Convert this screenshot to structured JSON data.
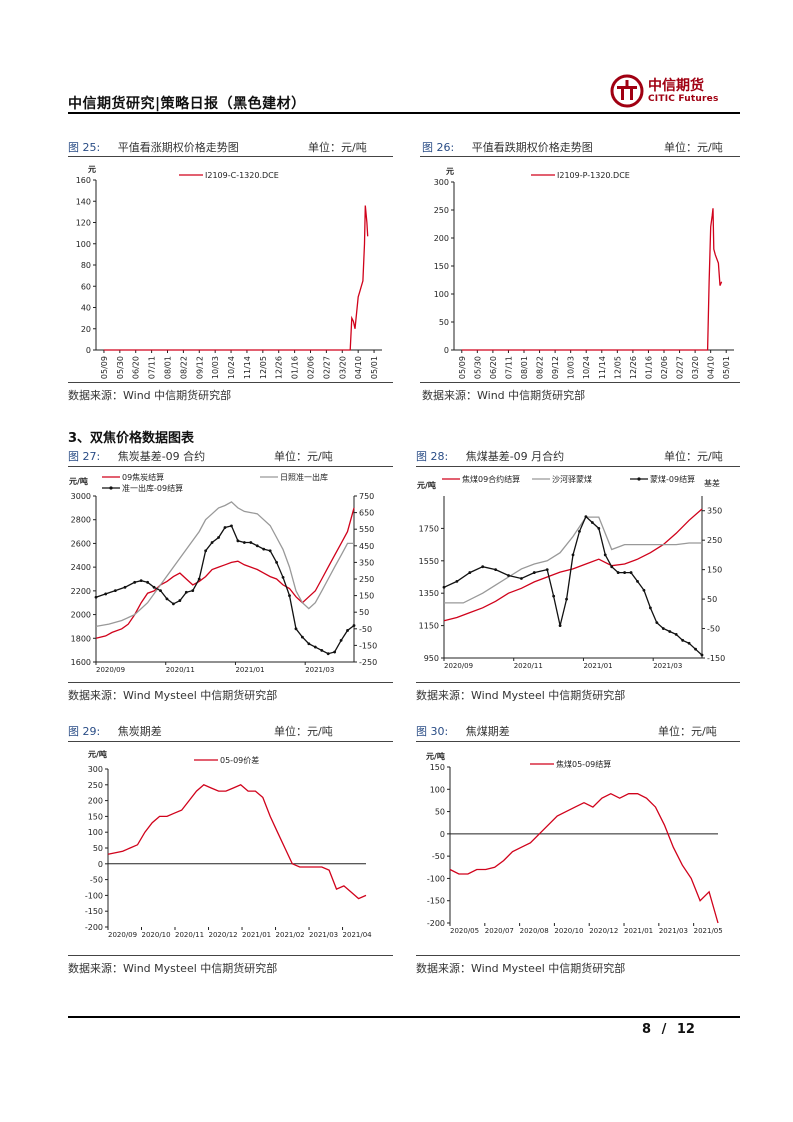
{
  "header": {
    "title": "中信期货研究|策略日报（黑色建材）",
    "logo_cn": "中信期货",
    "logo_en": "CITIC Futures",
    "brand_color": "#a00012"
  },
  "section_title": "3、双焦价格数据图表",
  "figures": [
    {
      "label": "图 25:",
      "title": "平值看涨期权价格走势图",
      "unit": "单位：元/吨",
      "source": "数据来源：Wind  中信期货研究部"
    },
    {
      "label": "图 26:",
      "title": "平值看跌期权价格走势图",
      "unit": "单位：元/吨",
      "source": "数据来源：Wind  中信期货研究部"
    },
    {
      "label": "图 27:",
      "title": "焦炭基差-09 合约",
      "unit": "单位：元/吨",
      "source": "数据来源：Wind Mysteel 中信期货研究部"
    },
    {
      "label": "图 28:",
      "title": "焦煤基差-09 月合约",
      "unit": "单位：元/吨",
      "source": "数据来源：Wind Mysteel 中信期货研究部"
    },
    {
      "label": "图 29:",
      "title": "焦炭期差",
      "unit": "单位：元/吨",
      "source": "数据来源：Wind Mysteel 中信期货研究部"
    },
    {
      "label": "图 30:",
      "title": "焦煤期差",
      "unit": "单位：元/吨",
      "source": "数据来源：Wind Mysteel 中信期货研究部"
    }
  ],
  "footer": {
    "page": "8",
    "total": "12",
    "sep": "/"
  },
  "chart_data": [
    {
      "type": "line",
      "ylabel": "元",
      "ylim": [
        0,
        160
      ],
      "yticks": [
        0,
        20,
        40,
        60,
        80,
        100,
        120,
        140,
        160
      ],
      "categories": [
        "05/09",
        "05/30",
        "06/20",
        "07/11",
        "08/01",
        "08/22",
        "09/12",
        "10/03",
        "10/24",
        "11/14",
        "12/05",
        "12/26",
        "01/16",
        "02/06",
        "02/27",
        "03/20",
        "04/10",
        "05/01"
      ],
      "series": [
        {
          "name": "I2109-C-1320.DCE",
          "color": "#d0021b",
          "x": [
            0,
            15.5,
            15.6,
            15.7,
            15.8,
            15.9,
            16.0,
            16.1,
            16.2,
            16.3,
            16.4,
            16.45,
            16.55,
            16.6
          ],
          "values": [
            0,
            0,
            30,
            27,
            20,
            35,
            50,
            55,
            60,
            65,
            100,
            136,
            120,
            107
          ]
        }
      ]
    },
    {
      "type": "line",
      "ylabel": "元",
      "ylim": [
        0,
        300
      ],
      "yticks": [
        0,
        50,
        100,
        150,
        200,
        250,
        300
      ],
      "categories": [
        "05/09",
        "05/30",
        "06/20",
        "07/11",
        "08/01",
        "08/22",
        "09/12",
        "10/03",
        "10/24",
        "11/14",
        "12/05",
        "12/26",
        "01/16",
        "02/06",
        "02/27",
        "03/20",
        "04/10",
        "05/01"
      ],
      "series": [
        {
          "name": "I2109-P-1320.DCE",
          "color": "#d0021b",
          "x": [
            0,
            15.8,
            15.9,
            16.0,
            16.1,
            16.15,
            16.2,
            16.3,
            16.5,
            16.6,
            16.7
          ],
          "values": [
            0,
            0,
            120,
            220,
            240,
            253,
            180,
            170,
            155,
            115,
            122
          ]
        }
      ]
    },
    {
      "type": "line",
      "ylabel": "元/吨",
      "ylim": [
        1600,
        3000
      ],
      "yticks": [
        1600,
        1800,
        2000,
        2200,
        2400,
        2600,
        2800,
        3000
      ],
      "y2lim": [
        -250,
        750
      ],
      "y2ticks": [
        -250,
        -150,
        -50,
        50,
        150,
        250,
        350,
        450,
        550,
        650,
        750
      ],
      "xticks": [
        "2020/09",
        "2020/11",
        "2021/01",
        "2021/03"
      ],
      "series": [
        {
          "name": "09焦炭结算",
          "color": "#d0021b",
          "axis": "left",
          "x": [
            0,
            3,
            5,
            8,
            10,
            12,
            14,
            16,
            18,
            20,
            22,
            24,
            26,
            28,
            30,
            32,
            34,
            36,
            38,
            40,
            42,
            44,
            46,
            48,
            50,
            52,
            54,
            56,
            58,
            60,
            62,
            64,
            66,
            68,
            70,
            72,
            74,
            76,
            78,
            80
          ],
          "values": [
            1800,
            1820,
            1850,
            1880,
            1920,
            2000,
            2100,
            2180,
            2200,
            2250,
            2280,
            2320,
            2350,
            2300,
            2250,
            2280,
            2320,
            2380,
            2400,
            2420,
            2440,
            2450,
            2420,
            2400,
            2380,
            2350,
            2320,
            2300,
            2250,
            2220,
            2150,
            2100,
            2150,
            2200,
            2300,
            2400,
            2500,
            2600,
            2700,
            2900
          ]
        },
        {
          "name": "日照准一出库",
          "color": "#999999",
          "axis": "left",
          "x": [
            0,
            4,
            8,
            12,
            16,
            20,
            24,
            28,
            32,
            34,
            36,
            38,
            40,
            42,
            44,
            46,
            48,
            50,
            52,
            54,
            56,
            58,
            60,
            62,
            64,
            66,
            68,
            70,
            72,
            74,
            76,
            78,
            80
          ],
          "values": [
            1900,
            1920,
            1950,
            2000,
            2100,
            2250,
            2400,
            2550,
            2700,
            2800,
            2850,
            2900,
            2920,
            2950,
            2900,
            2870,
            2860,
            2850,
            2800,
            2750,
            2650,
            2550,
            2400,
            2200,
            2100,
            2050,
            2100,
            2200,
            2300,
            2400,
            2500,
            2600,
            2600
          ]
        },
        {
          "name": "准一出库-09结算",
          "color": "#111111",
          "axis": "right",
          "x": [
            0,
            3,
            6,
            9,
            12,
            14,
            16,
            18,
            20,
            22,
            24,
            26,
            28,
            30,
            32,
            34,
            36,
            38,
            40,
            42,
            44,
            46,
            48,
            50,
            52,
            54,
            56,
            58,
            60,
            62,
            64,
            66,
            68,
            70,
            72,
            74,
            76,
            78,
            80
          ],
          "values": [
            140,
            160,
            180,
            200,
            230,
            240,
            230,
            200,
            180,
            130,
            100,
            120,
            170,
            180,
            250,
            420,
            470,
            500,
            560,
            570,
            480,
            470,
            470,
            450,
            430,
            420,
            350,
            260,
            150,
            -50,
            -100,
            -140,
            -160,
            -180,
            -200,
            -190,
            -120,
            -60,
            -30
          ]
        }
      ]
    },
    {
      "type": "line",
      "ylabel": "元/吨",
      "y2label": "基差",
      "ylim": [
        950,
        1950
      ],
      "yticks": [
        950,
        1150,
        1350,
        1550,
        1750
      ],
      "y2lim": [
        -150,
        400
      ],
      "y2ticks": [
        -150,
        -50,
        50,
        150,
        250,
        350
      ],
      "xticks": [
        "2020/09",
        "2020/11",
        "2021/01",
        "2021/03"
      ],
      "series": [
        {
          "name": "焦煤09合约结算",
          "color": "#d0021b",
          "axis": "left",
          "x": [
            0,
            4,
            8,
            12,
            16,
            20,
            24,
            28,
            32,
            36,
            40,
            44,
            48,
            52,
            56,
            60,
            64,
            68,
            72,
            76,
            80
          ],
          "values": [
            1180,
            1200,
            1230,
            1260,
            1300,
            1350,
            1380,
            1420,
            1450,
            1480,
            1500,
            1530,
            1560,
            1520,
            1530,
            1560,
            1600,
            1650,
            1720,
            1800,
            1870
          ]
        },
        {
          "name": "沙河驿蒙煤",
          "color": "#999999",
          "axis": "left",
          "x": [
            0,
            6,
            12,
            16,
            20,
            24,
            28,
            32,
            36,
            40,
            44,
            48,
            52,
            56,
            60,
            64,
            68,
            72,
            76,
            80
          ],
          "values": [
            1290,
            1290,
            1350,
            1400,
            1450,
            1500,
            1530,
            1550,
            1600,
            1700,
            1820,
            1820,
            1620,
            1650,
            1650,
            1650,
            1650,
            1650,
            1660,
            1660
          ]
        },
        {
          "name": "蒙煤-09结算",
          "color": "#111111",
          "axis": "right",
          "x": [
            0,
            4,
            8,
            12,
            16,
            20,
            24,
            28,
            32,
            34,
            36,
            38,
            40,
            42,
            44,
            46,
            48,
            50,
            52,
            54,
            56,
            58,
            60,
            62,
            64,
            66,
            68,
            70,
            72,
            74,
            76,
            78,
            80
          ],
          "values": [
            90,
            110,
            140,
            160,
            150,
            130,
            120,
            140,
            150,
            60,
            -40,
            50,
            200,
            280,
            330,
            310,
            290,
            200,
            160,
            140,
            140,
            140,
            110,
            80,
            20,
            -30,
            -50,
            -60,
            -70,
            -90,
            -100,
            -120,
            -140
          ]
        }
      ]
    },
    {
      "type": "line",
      "ylabel": "元/吨",
      "ylim": [
        -200,
        300
      ],
      "yticks": [
        -200,
        -150,
        -100,
        -50,
        0,
        50,
        100,
        150,
        200,
        250,
        300
      ],
      "xticks": [
        "2020/09",
        "2020/10",
        "2020/11",
        "2020/12",
        "2021/01",
        "2021/02",
        "2021/03",
        "2021/04"
      ],
      "series": [
        {
          "name": "05-09价差",
          "color": "#d0021b",
          "x": [
            0,
            2,
            4,
            6,
            8,
            10,
            12,
            14,
            16,
            18,
            20,
            22,
            24,
            26,
            28,
            30,
            32,
            34,
            36,
            38,
            40,
            42,
            44,
            46,
            48,
            50,
            52,
            54,
            56,
            58,
            60,
            62,
            64,
            66,
            68,
            70
          ],
          "values": [
            30,
            35,
            40,
            50,
            60,
            100,
            130,
            150,
            150,
            160,
            170,
            200,
            230,
            250,
            240,
            230,
            230,
            240,
            250,
            230,
            230,
            210,
            150,
            100,
            50,
            0,
            -10,
            -10,
            -10,
            -10,
            -20,
            -80,
            -70,
            -90,
            -110,
            -100
          ]
        }
      ]
    },
    {
      "type": "line",
      "ylabel": "元/吨",
      "ylim": [
        -200,
        150
      ],
      "yticks": [
        -200,
        -150,
        -100,
        -50,
        0,
        50,
        100,
        150
      ],
      "xticks": [
        "2020/05",
        "2020/07",
        "2020/08",
        "2020/10",
        "2020/12",
        "2021/01",
        "2021/03",
        "2021/05"
      ],
      "series": [
        {
          "name": "焦煤05-09结算",
          "color": "#d0021b",
          "x": [
            0,
            4,
            8,
            12,
            16,
            20,
            24,
            28,
            32,
            36,
            40,
            44,
            48,
            52,
            56,
            60,
            64,
            68,
            72,
            76,
            80,
            84,
            88,
            92,
            96,
            100,
            104,
            108,
            112,
            116,
            120
          ],
          "values": [
            -80,
            -90,
            -90,
            -80,
            -80,
            -75,
            -60,
            -40,
            -30,
            -20,
            0,
            20,
            40,
            50,
            60,
            70,
            60,
            80,
            90,
            80,
            90,
            90,
            80,
            60,
            20,
            -30,
            -70,
            -100,
            -150,
            -130,
            -200
          ]
        }
      ]
    }
  ]
}
